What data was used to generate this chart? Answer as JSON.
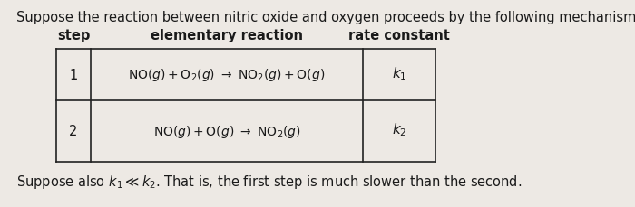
{
  "background_color": "#ede9e4",
  "title_text": "Suppose the reaction between nitric oxide and oxygen proceeds by the following mechanism:",
  "title_fontsize": 10.5,
  "col_headers": [
    "step",
    "elementary reaction",
    "rate constant"
  ],
  "reaction_row1": "NO(g) + O₂(g) → NO₂(g) + O(g)",
  "reaction_row2": "NO(g) + O(g) → NO₂(g)",
  "rate_row1": "k₁",
  "rate_row2": "k₂",
  "footer_plain": "Suppose also ",
  "footer_math": "k_1\\ll k_2",
  "footer_rest": ". That is, the first step is much slower than the second.",
  "text_color": "#1a1a1a",
  "table_line_color": "#222222"
}
